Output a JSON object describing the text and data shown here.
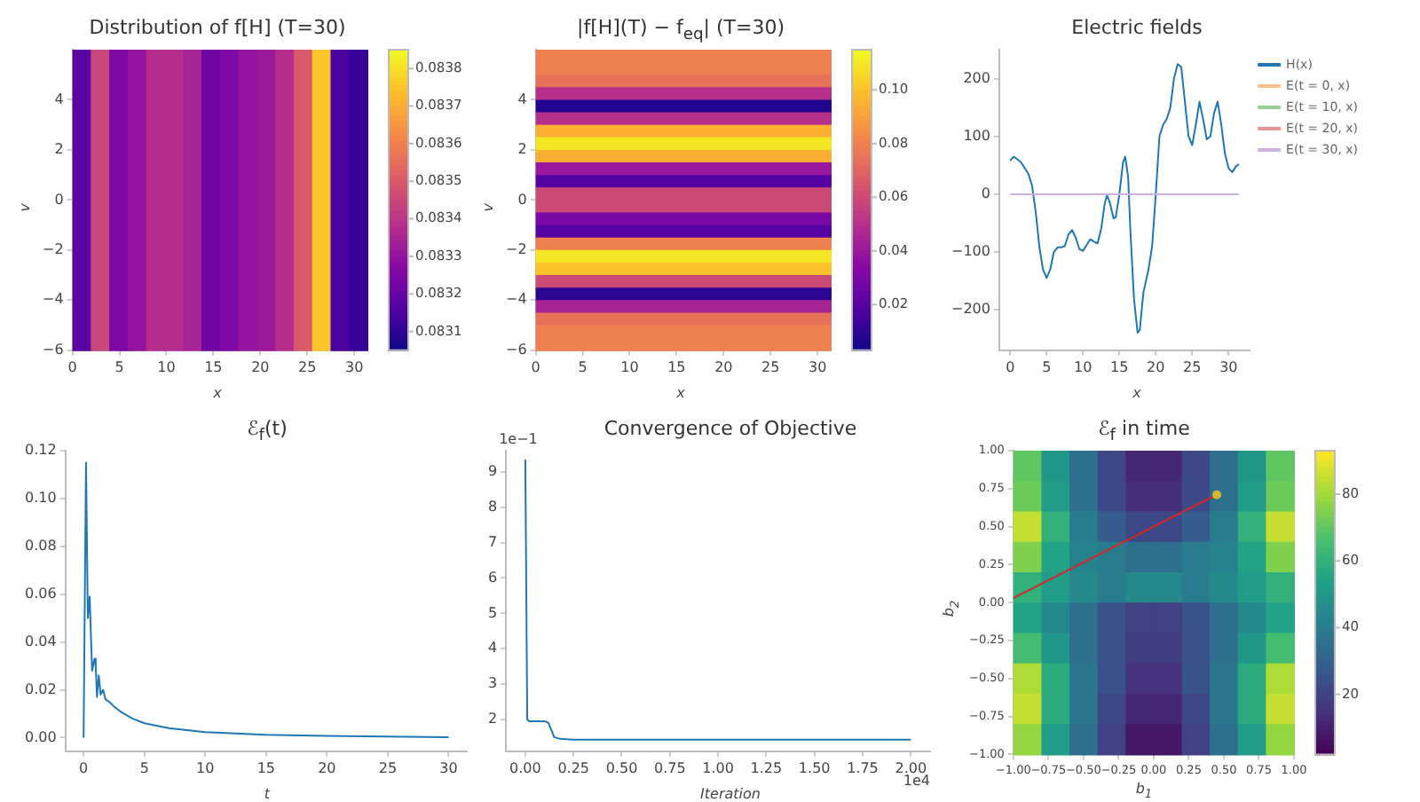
{
  "chart_data": [
    {
      "type": "heatmap",
      "title": "Distribution of f[H] (T=30)",
      "xlabel": "x",
      "ylabel": "v",
      "cells": [
        [
          0.08318,
          0.08345,
          0.08325,
          0.0833,
          0.08338,
          0.08338,
          0.08335,
          0.08322,
          0.08325,
          0.0833,
          0.08332,
          0.08338,
          0.0835,
          0.08375,
          0.08315,
          0.08312
        ]
      ],
      "xlim": [
        0,
        31.4
      ],
      "ylim": [
        -6,
        6
      ],
      "xticks": [
        0,
        5,
        10,
        15,
        20,
        25,
        30
      ],
      "yticks": [
        {
          "value": -6,
          "label": "−6"
        },
        {
          "value": -4,
          "label": "−4"
        },
        {
          "value": -2,
          "label": "−2"
        },
        0,
        2,
        4
      ],
      "clim": [
        0.08305,
        0.08385
      ],
      "cticks": [
        0.0831,
        0.0832,
        0.0833,
        0.0834,
        0.0835,
        0.0836,
        0.0837,
        0.0838
      ]
    },
    {
      "type": "heatmap",
      "title": "|f[H](T) − f$_{eq}$| (T=30)",
      "xlabel": "x",
      "ylabel": "v",
      "cells": [
        [
          0.08
        ],
        [
          0.08
        ],
        [
          0.075
        ],
        [
          0.05
        ],
        [
          0.008
        ],
        [
          0.05
        ],
        [
          0.095
        ],
        [
          0.11
        ],
        [
          0.095
        ],
        [
          0.04
        ],
        [
          0.02
        ],
        [
          0.06
        ],
        [
          0.06
        ],
        [
          0.03
        ],
        [
          0.02
        ],
        [
          0.08
        ],
        [
          0.11
        ],
        [
          0.1
        ],
        [
          0.06
        ],
        [
          0.01
        ],
        [
          0.045
        ],
        [
          0.075
        ],
        [
          0.08
        ],
        [
          0.08
        ]
      ],
      "xlim": [
        0,
        31.4
      ],
      "ylim": [
        -6,
        6
      ],
      "xticks": [
        0,
        5,
        10,
        15,
        20,
        25,
        30
      ],
      "yticks": [
        {
          "value": -6,
          "label": "−6"
        },
        {
          "value": -4,
          "label": "−4"
        },
        {
          "value": -2,
          "label": "−2"
        },
        0,
        2,
        4
      ],
      "clim": [
        0.003,
        0.115
      ],
      "cticks": [
        {
          "value": 0.02,
          "label": "0.02"
        },
        {
          "value": 0.04,
          "label": "0.04"
        },
        {
          "value": 0.06,
          "label": "0.06"
        },
        {
          "value": 0.08,
          "label": "0.08"
        },
        {
          "value": 0.1,
          "label": "0.10"
        }
      ]
    },
    {
      "type": "line",
      "title": "Electric fields",
      "xlabel": "x",
      "legend": "top right",
      "series": [
        {
          "name": "H(x)",
          "color": "#1f77b4",
          "x": [
            0,
            0.5,
            1.5,
            2.5,
            3,
            3.5,
            4,
            4.5,
            5,
            5.5,
            6,
            6.5,
            7,
            7.5,
            8,
            8.5,
            9,
            9.5,
            10,
            10.5,
            11,
            11.5,
            12,
            12.5,
            13,
            13.3,
            13.7,
            14.2,
            14.5,
            15,
            15.5,
            15.8,
            16.2,
            16.5,
            17,
            17.5,
            17.8,
            18.3,
            19,
            19.5,
            20,
            20.5,
            21,
            21.5,
            22,
            22.5,
            23,
            23.5,
            24,
            24.5,
            25,
            25.5,
            26,
            26.5,
            27,
            27.5,
            28,
            28.5,
            29,
            29.5,
            30,
            30.5,
            31,
            31.4
          ],
          "values": [
            58,
            65,
            55,
            35,
            15,
            -30,
            -90,
            -130,
            -145,
            -130,
            -100,
            -92,
            -92,
            -90,
            -70,
            -62,
            -75,
            -95,
            -98,
            -88,
            -78,
            -82,
            -85,
            -60,
            -15,
            -2,
            -15,
            -42,
            -40,
            0,
            55,
            65,
            30,
            -60,
            -180,
            -240,
            -235,
            -170,
            -130,
            -90,
            0,
            100,
            120,
            130,
            150,
            200,
            225,
            220,
            160,
            100,
            85,
            120,
            160,
            130,
            95,
            100,
            140,
            160,
            120,
            70,
            45,
            38,
            48,
            52
          ]
        },
        {
          "name": "E(t = 0, x)",
          "color": "#ffbf86",
          "values": [
            null,
            null
          ]
        },
        {
          "name": "E(t = 10, x)",
          "color": "#95cf95",
          "values": [
            null,
            null
          ]
        },
        {
          "name": "E(t = 20, x)",
          "color": "#ea9393",
          "values": [
            null,
            null
          ]
        },
        {
          "name": "E(t = 30, x)",
          "color": "#c9b3de",
          "x": [
            0,
            31.4
          ],
          "values": [
            0,
            0
          ]
        }
      ],
      "xlim": [
        -1.5,
        32.9
      ],
      "ylim": [
        -270,
        250
      ],
      "xticks": [
        0,
        5,
        10,
        15,
        20,
        25,
        30
      ],
      "yticks": [
        {
          "value": -200,
          "label": "−200"
        },
        {
          "value": -100,
          "label": "−100"
        },
        0,
        100,
        200
      ]
    },
    {
      "type": "line",
      "title": "ℰ$_{f}$(t)",
      "xlabel": "t",
      "color": "#1f77b4",
      "x": [
        0,
        0.2,
        0.35,
        0.5,
        0.7,
        0.9,
        1.0,
        1.1,
        1.25,
        1.4,
        1.6,
        1.8,
        2.1,
        2.5,
        3,
        4,
        5,
        7,
        10,
        15,
        20,
        25,
        30
      ],
      "values": [
        0,
        0.115,
        0.05,
        0.059,
        0.028,
        0.033,
        0.03,
        0.017,
        0.026,
        0.018,
        0.02,
        0.016,
        0.015,
        0.013,
        0.011,
        0.008,
        0.006,
        0.004,
        0.0023,
        0.0012,
        0.0007,
        0.0004,
        0.0002
      ],
      "xlim": [
        -1.5,
        31.5
      ],
      "ylim": [
        -0.0057,
        0.12
      ],
      "xticks": [
        0,
        5,
        10,
        15,
        20,
        25,
        30
      ],
      "yticks": [
        {
          "value": 0,
          "label": "0.00"
        },
        {
          "value": 0.02,
          "label": "0.02"
        },
        {
          "value": 0.04,
          "label": "0.04"
        },
        {
          "value": 0.06,
          "label": "0.06"
        },
        {
          "value": 0.08,
          "label": "0.08"
        },
        {
          "value": 0.1,
          "label": "0.10"
        },
        {
          "value": 0.12,
          "label": "0.12"
        }
      ]
    },
    {
      "type": "line",
      "title": "Convergence of Objective",
      "xlabel": "Iteration",
      "color": "#1f77b4",
      "annotations": [
        "1e−1",
        "1e4"
      ],
      "x": [
        0,
        0.01,
        0.02,
        0.1,
        0.12,
        0.15,
        0.18,
        0.25,
        2.0
      ],
      "values": [
        9.35,
        2.0,
        1.95,
        1.95,
        1.9,
        1.5,
        1.45,
        1.43,
        1.43
      ],
      "xlim": [
        -0.1,
        2.1
      ],
      "ylim": [
        1.1,
        9.6
      ],
      "xticks": [
        {
          "value": 0,
          "label": "0.00"
        },
        0.25,
        {
          "value": 0.5,
          "label": "0.50"
        },
        0.75,
        {
          "value": 1,
          "label": "1.00"
        },
        1.25,
        {
          "value": 1.5,
          "label": "1.50"
        },
        1.75,
        {
          "value": 2,
          "label": "2.00"
        }
      ],
      "yticks": [
        2,
        3,
        4,
        5,
        6,
        7,
        8,
        9
      ]
    },
    {
      "type": "heatmap",
      "title": "ℰ$_{f}$ in time",
      "xlabel": "b$_{1}$",
      "ylabel": "b$_{2}$",
      "cells": [
        [
          70,
          50,
          35,
          22,
          12,
          12,
          22,
          35,
          50,
          70
        ],
        [
          72,
          52,
          35,
          22,
          14,
          14,
          22,
          35,
          52,
          72
        ],
        [
          85,
          60,
          40,
          28,
          22,
          22,
          28,
          40,
          60,
          85
        ],
        [
          75,
          55,
          42,
          40,
          35,
          35,
          40,
          42,
          55,
          75
        ],
        [
          60,
          52,
          45,
          40,
          45,
          45,
          40,
          45,
          52,
          60
        ],
        [
          55,
          45,
          35,
          25,
          20,
          20,
          25,
          35,
          45,
          55
        ],
        [
          65,
          50,
          35,
          25,
          18,
          18,
          25,
          35,
          50,
          65
        ],
        [
          82,
          58,
          38,
          25,
          15,
          15,
          25,
          38,
          58,
          82
        ],
        [
          85,
          58,
          38,
          22,
          12,
          12,
          22,
          38,
          58,
          85
        ],
        [
          78,
          52,
          35,
          20,
          8,
          8,
          20,
          35,
          52,
          78
        ]
      ],
      "series": [
        {
          "type": "line",
          "color": "#d62728",
          "x": [
            -1,
            0.45
          ],
          "values": [
            0.03,
            0.71
          ]
        },
        {
          "type": "scatter",
          "color": "#d4b82c",
          "marker": "circle",
          "x": [
            0.45
          ],
          "values": [
            0.71
          ]
        }
      ],
      "xlim": [
        -1,
        1
      ],
      "ylim": [
        -1,
        1
      ],
      "xticks": [
        {
          "value": -1,
          "label": "−1.00"
        },
        {
          "value": -0.75,
          "label": "−0.75"
        },
        {
          "value": -0.5,
          "label": "−0.50"
        },
        {
          "value": -0.25,
          "label": "−0.25"
        },
        {
          "value": 0,
          "label": "0.00"
        },
        {
          "value": 0.25,
          "label": "0.25"
        },
        {
          "value": 0.5,
          "label": "0.50"
        },
        {
          "value": 0.75,
          "label": "0.75"
        },
        {
          "value": 1,
          "label": "1.00"
        }
      ],
      "yticks": [
        {
          "value": -1,
          "label": "−1.00"
        },
        {
          "value": -0.75,
          "label": "−0.75"
        },
        {
          "value": -0.5,
          "label": "−0.50"
        },
        {
          "value": -0.25,
          "label": "−0.25"
        },
        {
          "value": 0,
          "label": "0.00"
        },
        {
          "value": 0.25,
          "label": "0.25"
        },
        {
          "value": 0.5,
          "label": "0.50"
        },
        {
          "value": 0.75,
          "label": "0.75"
        },
        {
          "value": 1,
          "label": "1.00"
        }
      ],
      "clim": [
        2,
        93
      ],
      "cticks": [
        20,
        40,
        60,
        80
      ]
    }
  ]
}
